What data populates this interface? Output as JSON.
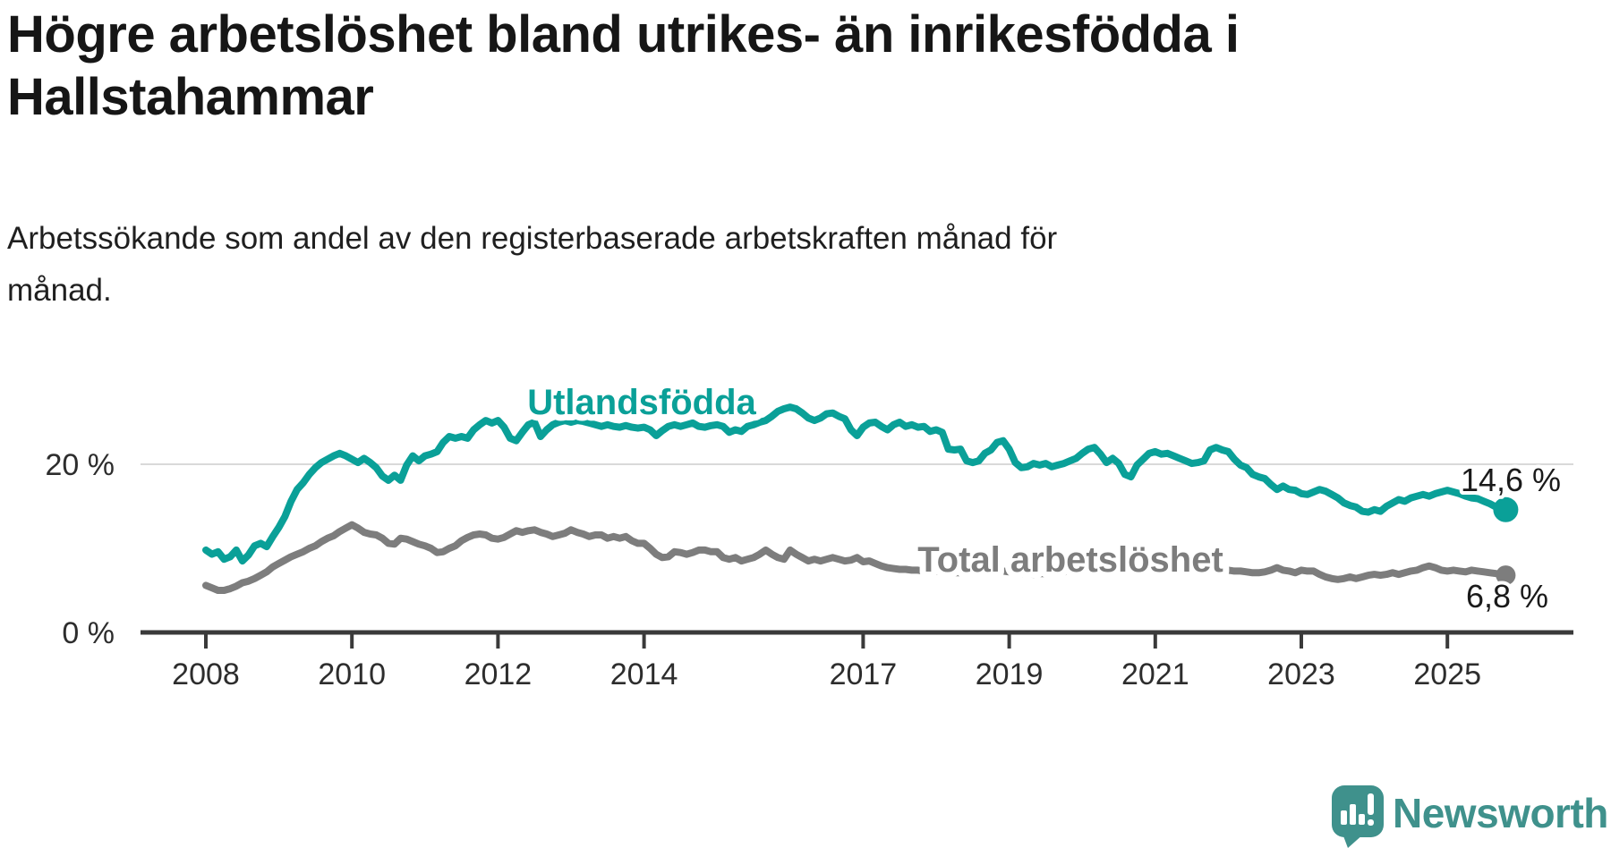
{
  "header": {
    "title_line1": "Högre arbetslöshet bland utrikes- än inrikesfödda i",
    "title_line2": "Hallstahammar",
    "subtitle_line1": "Arbetssökande som andel av den registerbaserade arbetskraften månad för",
    "subtitle_line2": "månad."
  },
  "chart_data": {
    "type": "line",
    "title": "Högre arbetslöshet bland utrikes- än inrikesfödda i Hallstahammar",
    "subtitle": "Arbetssökande som andel av den registerbaserade arbetskraften månad för månad.",
    "x_start": "2008-01",
    "x_end": "2025-10",
    "x_unit": "month",
    "xlabel": "",
    "ylabel": "",
    "ylim": [
      0,
      28
    ],
    "grid": "single-horizontal-line-at-20",
    "legend_position": "inline-labels-on-lines",
    "x_ticks": [
      {
        "year": 2008,
        "label": "2008"
      },
      {
        "year": 2010,
        "label": "2010"
      },
      {
        "year": 2012,
        "label": "2012"
      },
      {
        "year": 2014,
        "label": "2014"
      },
      {
        "year": 2017,
        "label": "2017"
      },
      {
        "year": 2019,
        "label": "2019"
      },
      {
        "year": 2021,
        "label": "2021"
      },
      {
        "year": 2023,
        "label": "2023"
      },
      {
        "year": 2025,
        "label": "2025"
      }
    ],
    "y_ticks": [
      {
        "value": 20,
        "label": "20 %"
      },
      {
        "value": 0,
        "label": "0 %"
      }
    ],
    "series": [
      {
        "name": "Utlandsfödda",
        "color": "#0aa098",
        "end_label": "14,6 %",
        "end_value": 14.6,
        "values": [
          9.8,
          9.3,
          9.6,
          8.7,
          9.0,
          9.8,
          8.5,
          9.2,
          10.3,
          10.6,
          10.2,
          11.4,
          12.5,
          13.8,
          15.6,
          17.0,
          17.8,
          18.8,
          19.6,
          20.2,
          20.6,
          21.0,
          21.3,
          21.0,
          20.6,
          20.2,
          20.7,
          20.2,
          19.6,
          18.6,
          18.1,
          18.7,
          18.1,
          19.9,
          21.0,
          20.4,
          21.0,
          21.2,
          21.5,
          22.6,
          23.3,
          23.1,
          23.3,
          23.1,
          24.1,
          24.7,
          25.2,
          24.9,
          25.2,
          24.4,
          23.1,
          22.8,
          23.8,
          24.7,
          25.0,
          23.3,
          24.1,
          24.7,
          25.0,
          25.2,
          25.0,
          25.2,
          25.1,
          24.9,
          24.7,
          24.5,
          24.7,
          24.5,
          24.4,
          24.6,
          24.4,
          24.3,
          24.4,
          24.1,
          23.4,
          24.0,
          24.5,
          24.7,
          24.5,
          24.7,
          24.9,
          24.5,
          24.4,
          24.6,
          24.7,
          24.5,
          23.8,
          24.1,
          23.9,
          24.5,
          24.7,
          25.0,
          25.2,
          25.7,
          26.3,
          26.6,
          26.8,
          26.6,
          26.1,
          25.5,
          25.2,
          25.5,
          26.0,
          26.1,
          25.7,
          25.4,
          24.1,
          23.4,
          24.4,
          24.9,
          25.0,
          24.5,
          24.1,
          24.7,
          25.0,
          24.5,
          24.7,
          24.4,
          24.5,
          23.9,
          24.1,
          23.8,
          21.8,
          21.7,
          21.8,
          20.4,
          20.2,
          20.4,
          21.3,
          21.7,
          22.6,
          22.8,
          21.8,
          20.2,
          19.6,
          19.7,
          20.1,
          19.9,
          20.1,
          19.7,
          19.9,
          20.1,
          20.4,
          20.7,
          21.3,
          21.8,
          22.0,
          21.2,
          20.2,
          20.7,
          20.1,
          18.8,
          18.5,
          19.9,
          20.6,
          21.3,
          21.5,
          21.2,
          21.3,
          21.0,
          20.7,
          20.4,
          20.1,
          20.2,
          20.4,
          21.7,
          22.0,
          21.7,
          21.5,
          20.6,
          19.9,
          19.6,
          18.8,
          18.5,
          18.3,
          17.6,
          17.0,
          17.4,
          17.0,
          16.9,
          16.5,
          16.4,
          16.7,
          17.0,
          16.8,
          16.4,
          16.0,
          15.4,
          15.1,
          14.9,
          14.4,
          14.3,
          14.6,
          14.4,
          15.0,
          15.4,
          15.8,
          15.6,
          16.0,
          16.2,
          16.4,
          16.2,
          16.5,
          16.7,
          16.9,
          16.7,
          16.5,
          16.2,
          16.0,
          15.9,
          15.6,
          15.3,
          14.9,
          14.6
        ]
      },
      {
        "name": "Total arbetslöshet",
        "color": "#7d7d7d",
        "end_label": "6,8 %",
        "end_value": 6.8,
        "values": [
          5.6,
          5.3,
          5.0,
          5.0,
          5.2,
          5.5,
          5.9,
          6.1,
          6.4,
          6.8,
          7.2,
          7.8,
          8.2,
          8.6,
          9.0,
          9.3,
          9.6,
          10.0,
          10.3,
          10.8,
          11.2,
          11.5,
          12.0,
          12.4,
          12.8,
          12.4,
          11.9,
          11.7,
          11.6,
          11.2,
          10.6,
          10.5,
          11.2,
          11.1,
          10.8,
          10.5,
          10.3,
          10.0,
          9.5,
          9.6,
          10.0,
          10.3,
          10.9,
          11.3,
          11.6,
          11.7,
          11.6,
          11.2,
          11.1,
          11.3,
          11.7,
          12.1,
          11.9,
          12.1,
          12.2,
          11.9,
          11.7,
          11.4,
          11.6,
          11.8,
          12.2,
          11.9,
          11.7,
          11.4,
          11.6,
          11.6,
          11.2,
          11.4,
          11.2,
          11.4,
          10.9,
          10.6,
          10.6,
          10.0,
          9.3,
          8.9,
          9.0,
          9.6,
          9.5,
          9.3,
          9.5,
          9.8,
          9.8,
          9.6,
          9.6,
          8.9,
          8.7,
          8.9,
          8.5,
          8.7,
          8.9,
          9.3,
          9.8,
          9.3,
          8.9,
          8.7,
          9.8,
          9.3,
          8.9,
          8.5,
          8.7,
          8.5,
          8.7,
          8.9,
          8.7,
          8.5,
          8.6,
          8.9,
          8.4,
          8.5,
          8.2,
          7.9,
          7.7,
          7.6,
          7.5,
          7.5,
          7.4,
          7.4,
          7.3,
          7.3,
          7.3,
          7.2,
          7.2,
          7.1,
          7.1,
          7.0,
          7.0,
          7.1,
          7.1,
          7.2,
          7.2,
          7.3,
          7.2,
          7.1,
          7.0,
          7.0,
          6.9,
          7.0,
          7.0,
          7.1,
          7.2,
          7.2,
          7.3,
          7.4,
          7.5,
          7.6,
          7.8,
          8.0,
          8.1,
          8.1,
          8.0,
          7.9,
          7.8,
          7.7,
          7.6,
          7.6,
          7.6,
          7.5,
          7.5,
          7.4,
          7.4,
          7.3,
          7.3,
          7.2,
          7.2,
          7.3,
          7.3,
          7.4,
          7.4,
          7.3,
          7.3,
          7.2,
          7.1,
          7.1,
          7.2,
          7.4,
          7.7,
          7.4,
          7.3,
          7.1,
          7.4,
          7.3,
          7.3,
          6.9,
          6.6,
          6.4,
          6.3,
          6.4,
          6.6,
          6.4,
          6.6,
          6.8,
          6.9,
          6.8,
          6.9,
          7.1,
          6.9,
          7.1,
          7.3,
          7.4,
          7.7,
          7.9,
          7.7,
          7.4,
          7.3,
          7.4,
          7.3,
          7.2,
          7.4,
          7.3,
          7.2,
          7.1,
          7.0,
          6.8
        ]
      }
    ]
  },
  "logo": {
    "text": "Newsworthy",
    "brand_color": "#3f918c",
    "icon": "speech-bubble-with-bar-chart-and-exclamation"
  }
}
